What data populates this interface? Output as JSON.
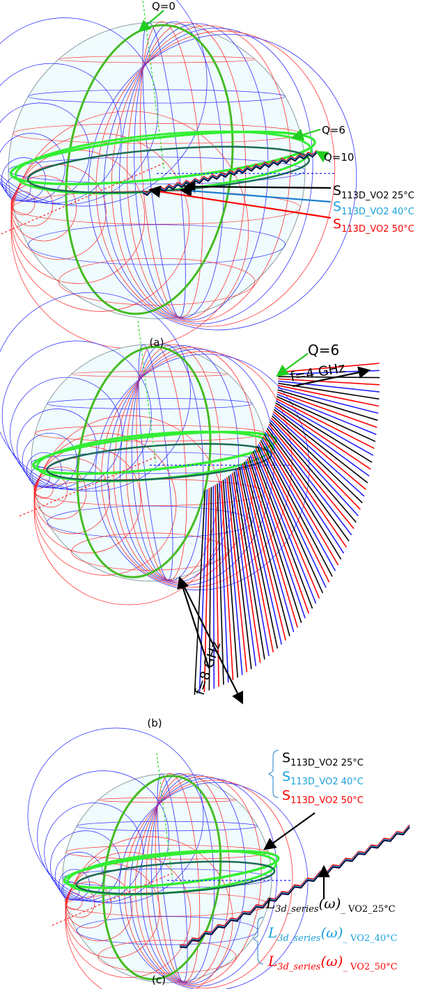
{
  "panels": [
    {
      "label": "(a)",
      "annotations": [
        "Q=0",
        "Q=6",
        "Q=10"
      ],
      "legend": [
        {
          "main": "S",
          "sub": "113D_VO2 25°C",
          "color": "#000000"
        },
        {
          "main": "S",
          "sub": "113D_VO2 40°C",
          "color": "#1aa0dc"
        },
        {
          "main": "S",
          "sub": "113D_VO2 50°C",
          "color": "#ff0000"
        }
      ]
    },
    {
      "label": "(b)",
      "annotations": [
        "Q=6",
        "f=4 GHz",
        "f=8 GHz"
      ]
    },
    {
      "label": "(c)",
      "legend": [
        {
          "main": "S",
          "sub": "113D_VO2 25°C",
          "color": "#000000"
        },
        {
          "main": "S",
          "sub": "113D_VO2 40°C",
          "color": "#1aa0dc"
        },
        {
          "main": "S",
          "sub": "113D_VO2 50°C",
          "color": "#ff0000"
        }
      ],
      "inductance_legend": [
        {
          "main": "L",
          "sub": "3d_series",
          "tail": "(ω)",
          "sub2": "_ VO2_25°C",
          "color": "#000000"
        },
        {
          "main": "L",
          "sub": "3d_series",
          "tail": "(ω)",
          "sub2": "_ VO2_40°C",
          "color": "#1aa0dc"
        },
        {
          "main": "L",
          "sub": "3d_series",
          "tail": "(ω)",
          "sub2": "_ VO2_50°C",
          "color": "#ff0000"
        }
      ]
    }
  ]
}
